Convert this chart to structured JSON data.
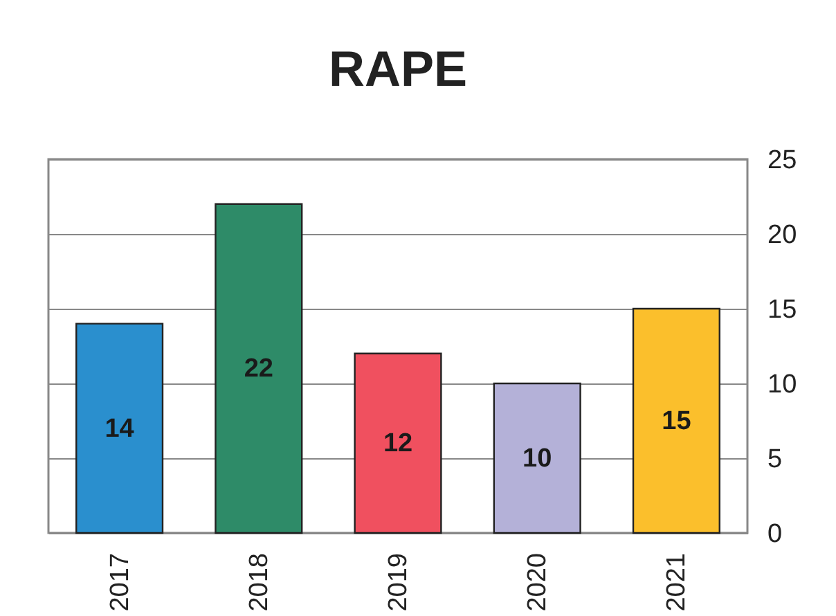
{
  "chart_data": {
    "type": "bar",
    "title": "RAPE",
    "categories": [
      "2017",
      "2018",
      "2019",
      "2020",
      "2021"
    ],
    "values": [
      14,
      22,
      12,
      10,
      15
    ],
    "colors": [
      "#2a8fce",
      "#2e8b68",
      "#f0505f",
      "#b4b1d8",
      "#fbbf2c"
    ],
    "ylim": [
      0,
      25
    ],
    "yticks": [
      0,
      5,
      10,
      15,
      20,
      25
    ],
    "grid": "y",
    "data_labels": true
  }
}
